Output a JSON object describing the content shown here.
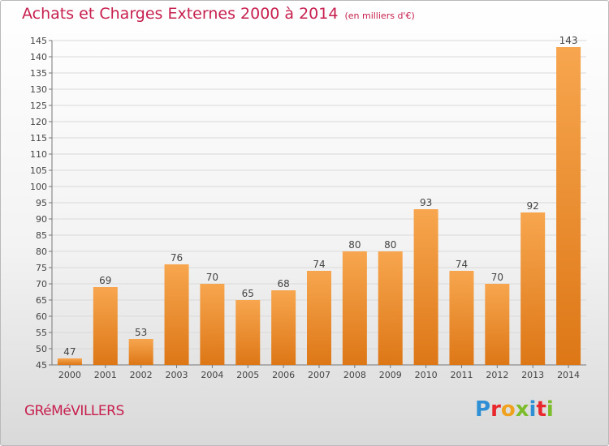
{
  "title": "Achats et Charges Externes 2000 à 2014",
  "subtitle": "(en milliers d'€)",
  "town": "GRéMéVILLERS",
  "logo": {
    "text": "Proxiti",
    "letters": [
      {
        "char": "P",
        "color": "#2e8fd4"
      },
      {
        "char": "r",
        "color": "#e8282d"
      },
      {
        "char": "o",
        "color": "#f0a21e"
      },
      {
        "char": "x",
        "color": "#7dbd2c"
      },
      {
        "char": "i",
        "color": "#2e8fd4"
      },
      {
        "char": "t",
        "color": "#e8282d"
      },
      {
        "char": "i",
        "color": "#7dbd2c"
      }
    ]
  },
  "colors": {
    "title": "#c71f4e",
    "bar_light": "#f6a24e",
    "bar_dark": "#e07b20",
    "axis": "#777777",
    "grid": "#d9d9d9"
  },
  "chart_data": {
    "type": "bar",
    "categories": [
      "2000",
      "2001",
      "2002",
      "2003",
      "2004",
      "2005",
      "2006",
      "2007",
      "2008",
      "2009",
      "2010",
      "2011",
      "2012",
      "2013",
      "2014"
    ],
    "values": [
      47,
      69,
      53,
      76,
      70,
      65,
      68,
      74,
      80,
      80,
      93,
      74,
      70,
      92,
      143
    ],
    "ylim": [
      45,
      145
    ],
    "yticks": [
      45,
      50,
      55,
      60,
      65,
      70,
      75,
      80,
      85,
      90,
      95,
      100,
      105,
      110,
      115,
      120,
      125,
      130,
      135,
      140,
      145
    ],
    "grid": true,
    "legend": "none",
    "data_labels": true
  }
}
